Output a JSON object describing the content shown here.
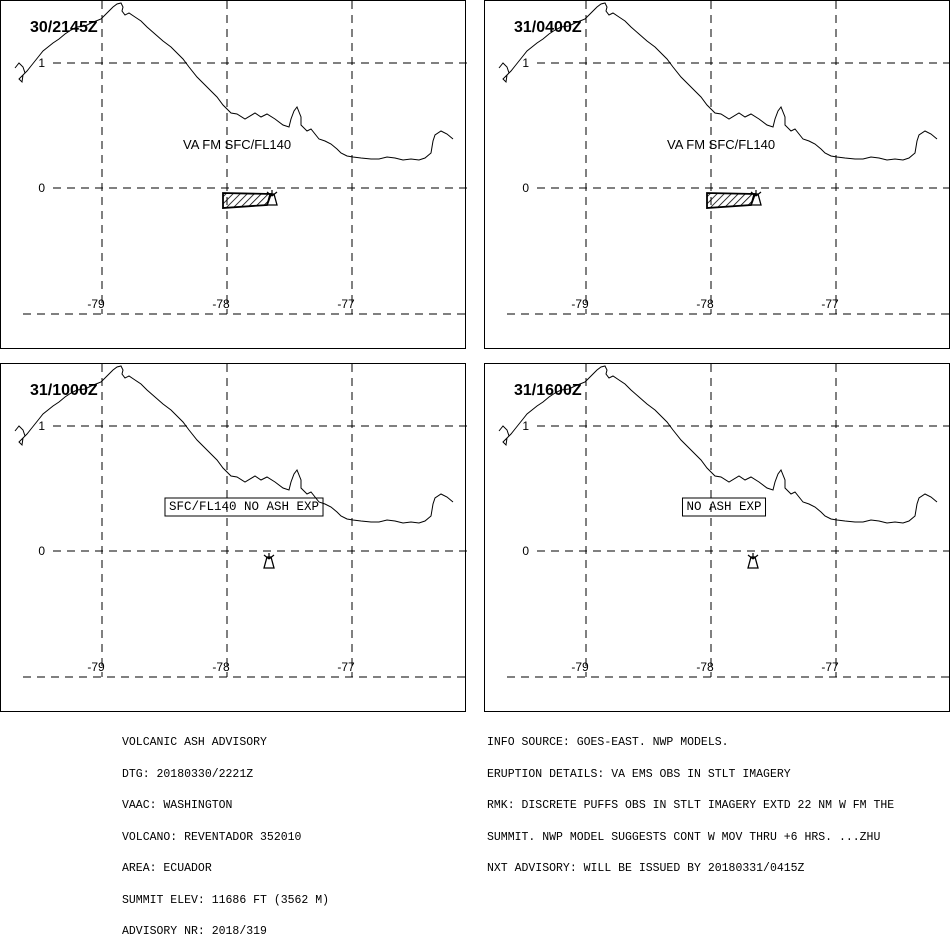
{
  "colors": {
    "ink": "#000000",
    "background": "#ffffff",
    "hatch": "#000000"
  },
  "axis": {
    "lat_ticks": [
      "1",
      "0"
    ],
    "lon_ticks": [
      "-79",
      "-78",
      "-77"
    ]
  },
  "panels": [
    {
      "time": "30/2145Z",
      "label": "VA FM SFC/FL140",
      "boxed": false,
      "ash_area": true
    },
    {
      "time": "31/0400Z",
      "label": "VA FM SFC/FL140",
      "boxed": false,
      "ash_area": true
    },
    {
      "time": "31/1000Z",
      "label": "SFC/FL140 NO ASH EXP",
      "boxed": true,
      "ash_area": false
    },
    {
      "time": "31/1600Z",
      "label": "NO ASH EXP",
      "boxed": true,
      "ash_area": false
    }
  ],
  "volcano_symbol": "volcano-icon",
  "advisory_left": [
    "VOLCANIC ASH ADVISORY",
    "DTG: 20180330/2221Z",
    "VAAC: WASHINGTON",
    "VOLCANO: REVENTADOR 352010",
    "AREA: ECUADOR",
    "SUMMIT ELEV: 11686 FT (3562 M)",
    "ADVISORY NR: 2018/319"
  ],
  "advisory_right": [
    "INFO SOURCE: GOES-EAST. NWP MODELS.",
    "ERUPTION DETAILS: VA EMS OBS IN STLT IMAGERY",
    "RMK: DISCRETE PUFFS OBS IN STLT IMAGERY EXTD 22 NM W FM THE",
    "SUMMIT. NWP MODEL SUGGESTS CONT W MOV THRU +6 HRS. ...ZHU",
    "NXT ADVISORY: WILL BE ISSUED BY 20180331/0415Z"
  ]
}
